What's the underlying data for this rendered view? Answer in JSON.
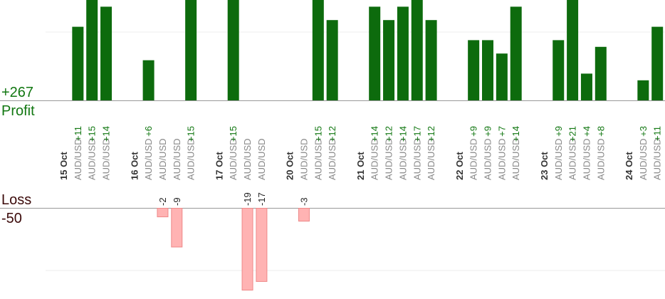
{
  "summary": {
    "profit_total": "+267",
    "profit_label": "Profit",
    "loss_label": "Loss",
    "loss_total": "-50"
  },
  "colors": {
    "profit_bar": "#0d6b0d",
    "profit_text": "#117711",
    "loss_bar": "#ffb3b3",
    "loss_border": "#ee8888",
    "axis": "#999999",
    "grid": "#eeeeee",
    "date_label": "#333333",
    "pair_label": "#888888"
  },
  "chart_data": {
    "type": "bar",
    "profit_scale_max": 15,
    "loss_scale_max": 19,
    "slots": [
      {
        "kind": "date",
        "label": "15 Oct"
      },
      {
        "kind": "trade",
        "label": "AUD/USD",
        "value": 11
      },
      {
        "kind": "trade",
        "label": "AUD/USD",
        "value": 15
      },
      {
        "kind": "trade",
        "label": "AUD/USD",
        "value": 14
      },
      {
        "kind": "gap"
      },
      {
        "kind": "date",
        "label": "16 Oct"
      },
      {
        "kind": "trade",
        "label": "AUD/USD",
        "value": 6
      },
      {
        "kind": "trade",
        "label": "AUD/USD",
        "value": -2
      },
      {
        "kind": "trade",
        "label": "AUD/USD",
        "value": -9
      },
      {
        "kind": "trade",
        "label": "AUD/USD",
        "value": 15
      },
      {
        "kind": "gap"
      },
      {
        "kind": "date",
        "label": "17 Oct"
      },
      {
        "kind": "trade",
        "label": "AUD/USD",
        "value": 15
      },
      {
        "kind": "trade",
        "label": "AUD/USD",
        "value": -19
      },
      {
        "kind": "trade",
        "label": "AUD/USD",
        "value": -17
      },
      {
        "kind": "gap"
      },
      {
        "kind": "date",
        "label": "20 Oct"
      },
      {
        "kind": "trade",
        "label": "AUD/USD",
        "value": -3
      },
      {
        "kind": "trade",
        "label": "AUD/USD",
        "value": 15
      },
      {
        "kind": "trade",
        "label": "AUD/USD",
        "value": 12
      },
      {
        "kind": "gap"
      },
      {
        "kind": "date",
        "label": "21 Oct"
      },
      {
        "kind": "trade",
        "label": "AUD/USD",
        "value": 14
      },
      {
        "kind": "trade",
        "label": "AUD/USD",
        "value": 12
      },
      {
        "kind": "trade",
        "label": "AUD/USD",
        "value": 14
      },
      {
        "kind": "trade",
        "label": "AUD/USD",
        "value": 17
      },
      {
        "kind": "trade",
        "label": "AUD/USD",
        "value": 12
      },
      {
        "kind": "gap"
      },
      {
        "kind": "date",
        "label": "22 Oct"
      },
      {
        "kind": "trade",
        "label": "AUD/USD",
        "value": 9
      },
      {
        "kind": "trade",
        "label": "AUD/USD",
        "value": 9
      },
      {
        "kind": "trade",
        "label": "AUD/USD",
        "value": 7
      },
      {
        "kind": "trade",
        "label": "AUD/USD",
        "value": 14
      },
      {
        "kind": "gap"
      },
      {
        "kind": "date",
        "label": "23 Oct"
      },
      {
        "kind": "trade",
        "label": "AUD/USD",
        "value": 9
      },
      {
        "kind": "trade",
        "label": "AUD/USD",
        "value": 21
      },
      {
        "kind": "trade",
        "label": "AUD/USD",
        "value": 4
      },
      {
        "kind": "trade",
        "label": "AUD/USD",
        "value": 8
      },
      {
        "kind": "gap"
      },
      {
        "kind": "date",
        "label": "24 Oct"
      },
      {
        "kind": "trade",
        "label": "AUD/USD",
        "value": 3
      },
      {
        "kind": "trade",
        "label": "AUD/USD",
        "value": 11
      }
    ]
  }
}
